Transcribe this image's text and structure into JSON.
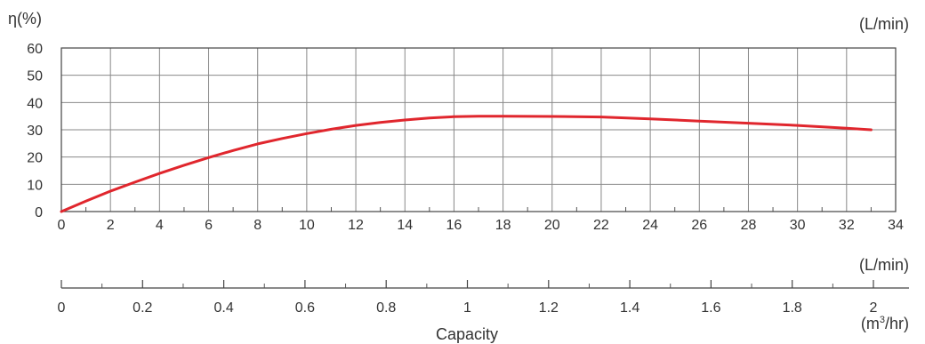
{
  "chart_data": {
    "type": "line",
    "y_title": "η(%)",
    "flow_unit_top": "(L/min)",
    "flow_unit_bottom": "(L/min)",
    "m3_unit": "(m³/hr)",
    "m3_unit_base": "(m",
    "m3_unit_sup": "3",
    "m3_unit_tail": "/hr)",
    "xlabel": "Capacity",
    "ylim": [
      0,
      60
    ],
    "xlim_lpm": [
      0,
      34
    ],
    "y_ticks": [
      "0",
      "10",
      "20",
      "30",
      "40",
      "50",
      "60"
    ],
    "x_ticks_lpm": [
      "0",
      "2",
      "4",
      "6",
      "8",
      "10",
      "12",
      "14",
      "16",
      "18",
      "20",
      "22",
      "24",
      "26",
      "28",
      "30",
      "32",
      "34"
    ],
    "x_ticks_m3": [
      "0",
      "0.2",
      "0.4",
      "0.6",
      "0.8",
      "1",
      "1.2",
      "1.4",
      "1.6",
      "1.8",
      "2"
    ],
    "grid": true,
    "series_color": "#e0262d",
    "series": [
      {
        "x": [
          0,
          1,
          2,
          3,
          4,
          5,
          6,
          7,
          8,
          9,
          10,
          11,
          12,
          13,
          14,
          15,
          16,
          17,
          18,
          20,
          22,
          24,
          26,
          28,
          30,
          32,
          33
        ],
        "y": [
          0,
          3.8,
          7.5,
          10.8,
          14,
          17,
          19.8,
          22.4,
          24.8,
          26.8,
          28.6,
          30.2,
          31.6,
          32.7,
          33.6,
          34.3,
          34.8,
          35,
          35,
          34.9,
          34.7,
          34,
          33.2,
          32.4,
          31.6,
          30.6,
          30
        ]
      }
    ]
  }
}
